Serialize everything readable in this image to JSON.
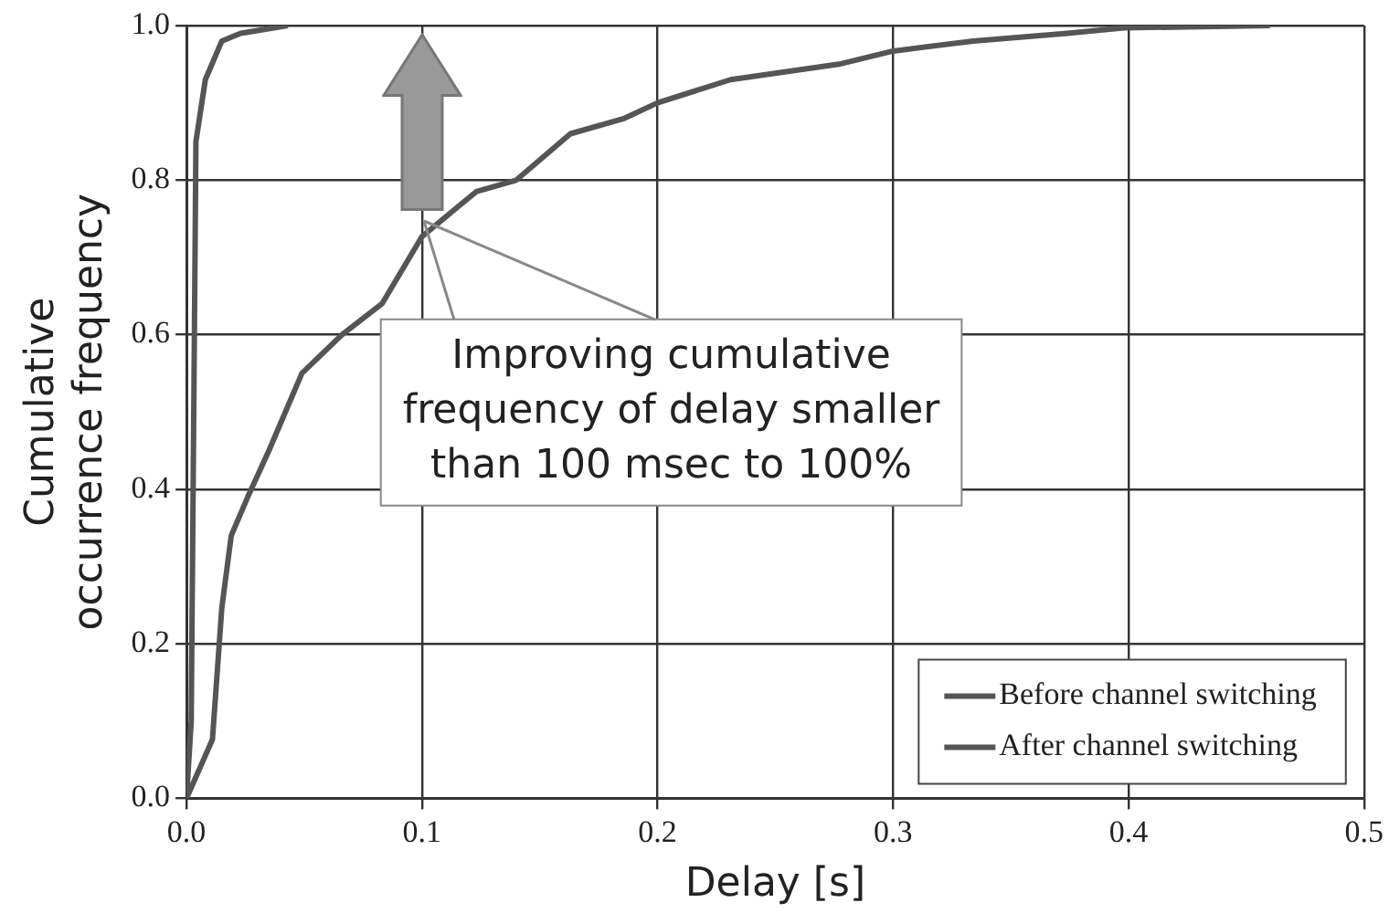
{
  "chart_data": {
    "type": "line",
    "xlabel": "Delay [s]",
    "ylabel": "Cumulative occurrence frequency",
    "xlim": [
      0,
      0.5
    ],
    "xticks": [
      {
        "value": 0,
        "label": "0.0"
      },
      0.1,
      0.2,
      0.3,
      0.4,
      0.5
    ],
    "ylim": [
      0,
      1
    ],
    "yticks": [
      {
        "value": 0,
        "label": "0.0"
      },
      0.2,
      0.4,
      0.6,
      0.8,
      {
        "value": 1,
        "label": "1.0"
      }
    ],
    "grid": true,
    "legend": "bottom right",
    "marker": "none",
    "line_style": "solid",
    "series": [
      {
        "name": "Before channel switching",
        "color": "#555555",
        "x": [
          0,
          0.011,
          0.015,
          0.019,
          0.026,
          0.035,
          0.049,
          0.066,
          0.083,
          0.1,
          0.123,
          0.14,
          0.163,
          0.186,
          0.2,
          0.231,
          0.277,
          0.3,
          0.334,
          0.374,
          0.398,
          0.46
        ],
        "values": [
          0,
          0.076,
          0.247,
          0.34,
          0.39,
          0.45,
          0.55,
          0.6,
          0.64,
          0.727,
          0.785,
          0.8,
          0.86,
          0.88,
          0.9,
          0.93,
          0.95,
          0.967,
          0.98,
          0.99,
          0.997,
          1.0
        ]
      },
      {
        "name": "After channel switching",
        "color": "#555555",
        "x": [
          0,
          0.002,
          0.003,
          0.004,
          0.008,
          0.015,
          0.023,
          0.043
        ],
        "values": [
          0,
          0.1,
          0.47,
          0.85,
          0.93,
          0.98,
          0.99,
          1.0
        ]
      }
    ],
    "annotations": [
      "Improving cumulative\nfrequency of delay smaller\nthan 100 msec to 100%"
    ]
  }
}
